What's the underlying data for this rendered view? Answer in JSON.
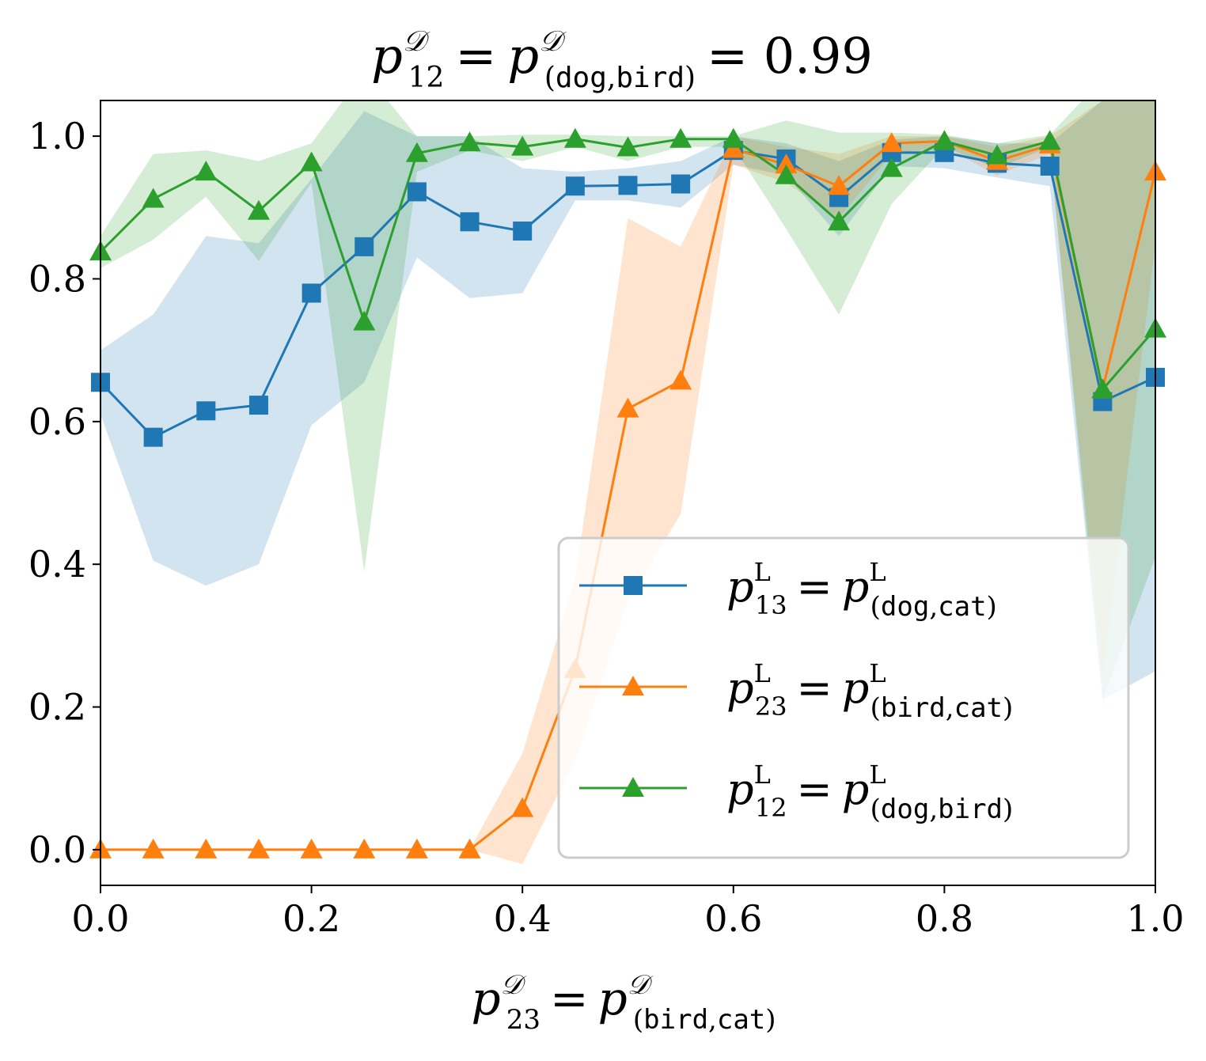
{
  "chart_data": {
    "type": "line",
    "title": {
      "p": "p",
      "sup": "𝒟",
      "sub": "12",
      "eq1": "=",
      "p2": "p",
      "sup2": "𝒟",
      "sub2_open": "(",
      "sub2_a": "dog",
      "sub2_comma": ",",
      "sub2_b": "bird",
      "sub2_close": ")",
      "eq2": "= 0.99"
    },
    "xlabel": {
      "p": "p",
      "sup": "𝒟",
      "sub": "23",
      "eq": "=",
      "p2": "p",
      "sup2": "𝒟",
      "sub2_open": "(",
      "sub2_a": "bird",
      "sub2_comma": ",",
      "sub2_b": "cat",
      "sub2_close": ")"
    },
    "ylabel": "",
    "xlim": [
      0.0,
      1.0
    ],
    "ylim": [
      -0.05,
      1.05
    ],
    "xticks": [
      "0.0",
      "0.2",
      "0.4",
      "0.6",
      "0.8",
      "1.0"
    ],
    "yticks": [
      "0.0",
      "0.2",
      "0.4",
      "0.6",
      "0.8",
      "1.0"
    ],
    "grid": false,
    "legend_position": "lower-right",
    "x": [
      0.0,
      0.05,
      0.1,
      0.15,
      0.2,
      0.25,
      0.3,
      0.35,
      0.4,
      0.45,
      0.5,
      0.55,
      0.6,
      0.65,
      0.7,
      0.75,
      0.8,
      0.85,
      0.9,
      0.95,
      1.0
    ],
    "series": [
      {
        "legend": {
          "p": "p",
          "sup": "L",
          "sub": "13",
          "eq": "=",
          "p2": "p",
          "sup2": "L",
          "open": "(",
          "a": "dog",
          "comma": ",",
          "b": "cat",
          "close": ")"
        },
        "color": "#1f77b4",
        "marker": "square",
        "values": [
          0.655,
          0.578,
          0.615,
          0.623,
          0.78,
          0.845,
          0.922,
          0.88,
          0.867,
          0.93,
          0.931,
          0.933,
          0.98,
          0.968,
          0.914,
          0.977,
          0.977,
          0.962,
          0.958,
          0.628,
          0.662
        ],
        "upper": [
          0.7,
          0.75,
          0.86,
          0.85,
          0.94,
          1.035,
          1.0,
          1.0,
          0.955,
          0.95,
          0.955,
          0.965,
          1.0,
          0.99,
          0.965,
          0.995,
          1.0,
          0.99,
          0.99,
          1.05,
          1.05
        ],
        "lower": [
          0.61,
          0.405,
          0.37,
          0.4,
          0.595,
          0.655,
          0.83,
          0.773,
          0.78,
          0.91,
          0.91,
          0.9,
          0.96,
          0.945,
          0.86,
          0.958,
          0.955,
          0.942,
          0.93,
          0.21,
          0.25
        ]
      },
      {
        "legend": {
          "p": "p",
          "sup": "L",
          "sub": "23",
          "eq": "=",
          "p2": "p",
          "sup2": "L",
          "open": "(",
          "a": "bird",
          "comma": ",",
          "b": "cat",
          "close": ")"
        },
        "color": "#ff7f0e",
        "marker": "triangle",
        "values": [
          0.0,
          0.0,
          0.0,
          0.0,
          0.0,
          0.0,
          0.0,
          0.0,
          0.058,
          0.253,
          0.618,
          0.657,
          0.982,
          0.96,
          0.93,
          0.99,
          0.993,
          0.965,
          0.988,
          0.645,
          0.95
        ],
        "upper": [
          0.0,
          0.0,
          0.0,
          0.0,
          0.0,
          0.0,
          0.0,
          0.0,
          0.135,
          0.38,
          0.885,
          0.845,
          1.0,
          0.985,
          0.975,
          1.0,
          1.0,
          0.985,
          1.0,
          1.05,
          1.05
        ],
        "lower": [
          0.0,
          0.0,
          0.0,
          0.0,
          0.0,
          0.0,
          0.0,
          0.0,
          -0.02,
          0.125,
          0.35,
          0.47,
          0.96,
          0.935,
          0.885,
          0.975,
          0.985,
          0.945,
          0.975,
          0.24,
          0.85
        ]
      },
      {
        "legend": {
          "p": "p",
          "sup": "L",
          "sub": "12",
          "eq": "=",
          "p2": "p",
          "sup2": "L",
          "open": "(",
          "a": "dog",
          "comma": ",",
          "b": "bird",
          "close": ")"
        },
        "color": "#2ca02c",
        "marker": "triangle",
        "values": [
          0.838,
          0.912,
          0.95,
          0.895,
          0.963,
          0.74,
          0.976,
          0.991,
          0.985,
          0.996,
          0.984,
          0.996,
          0.996,
          0.945,
          0.88,
          0.955,
          0.993,
          0.973,
          0.993,
          0.645,
          0.73
        ],
        "upper": [
          0.86,
          0.975,
          0.98,
          0.965,
          0.99,
          1.09,
          1.0,
          1.0,
          1.002,
          1.002,
          1.0,
          1.0,
          1.0,
          1.022,
          1.005,
          1.005,
          1.002,
          0.99,
          1.002,
          1.08,
          1.05
        ],
        "lower": [
          0.815,
          0.855,
          0.915,
          0.825,
          0.935,
          0.39,
          0.95,
          0.98,
          0.965,
          0.985,
          0.965,
          0.985,
          0.985,
          0.87,
          0.75,
          0.905,
          0.985,
          0.955,
          0.985,
          0.21,
          0.41
        ]
      }
    ]
  }
}
